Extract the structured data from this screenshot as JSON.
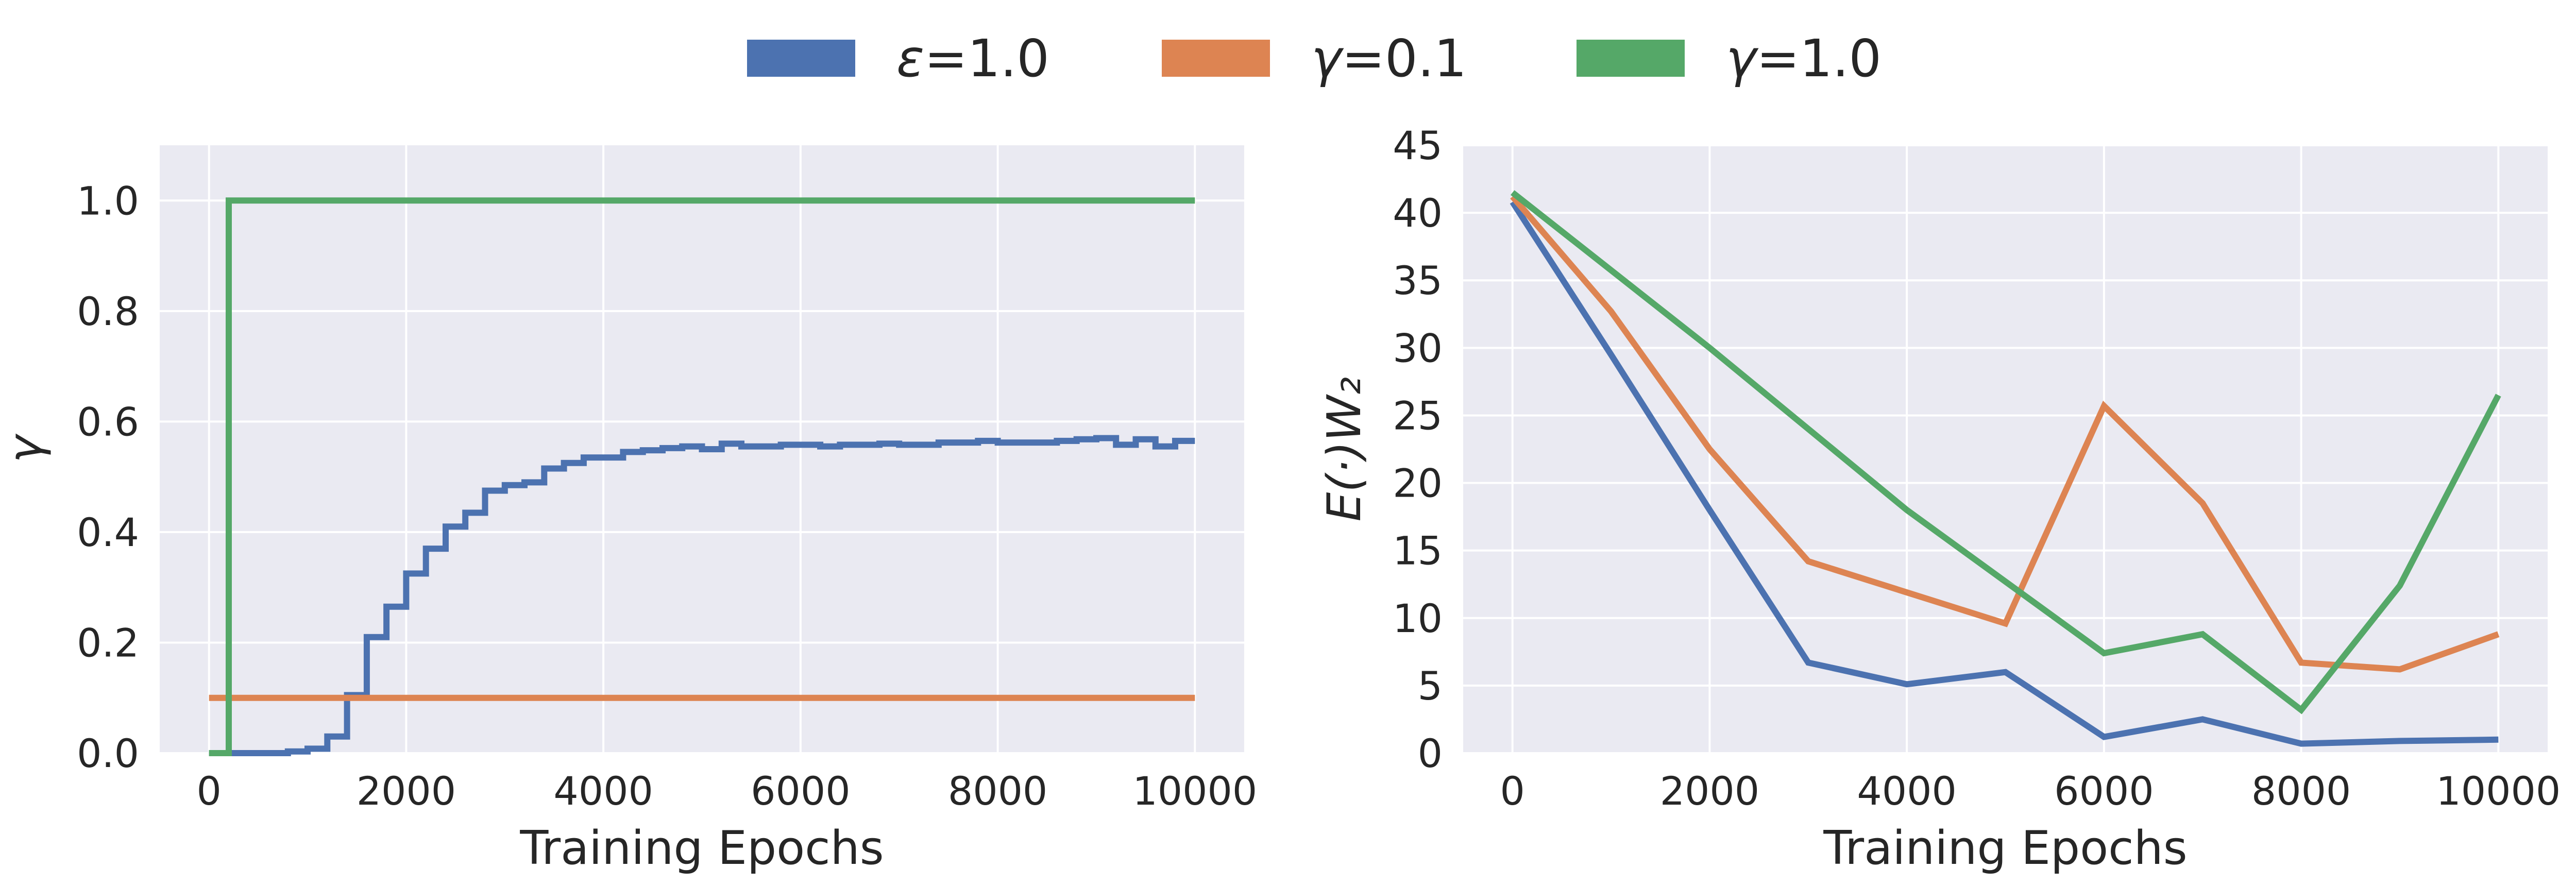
{
  "legend": {
    "items": [
      {
        "symbol": "ε",
        "value": "=1.0",
        "color": "#4c72b0"
      },
      {
        "symbol": "γ",
        "value": "=0.1",
        "color": "#dd8452"
      },
      {
        "symbol": "γ",
        "value": "=1.0",
        "color": "#55a868"
      }
    ]
  },
  "chart_data": [
    {
      "type": "line",
      "title": "",
      "xlabel": "Training Epochs",
      "ylabel": "γ",
      "xlim": [
        -500,
        10500
      ],
      "ylim": [
        0,
        1.1
      ],
      "xticks": [
        0,
        2000,
        4000,
        6000,
        8000,
        10000
      ],
      "xtick_labels": [
        "0",
        "2000",
        "4000",
        "6000",
        "8000",
        "10000"
      ],
      "yticks": [
        0,
        0.2,
        0.4,
        0.6,
        0.8,
        1.0
      ],
      "ytick_labels": [
        "0.0",
        "0.2",
        "0.4",
        "0.6",
        "0.8",
        "1.0"
      ],
      "grid": true,
      "drawstyle": "steps-post",
      "series": [
        {
          "name": "ε=1.0",
          "color": "#4c72b0",
          "x": [
            0,
            200,
            400,
            600,
            800,
            1000,
            1200,
            1400,
            1600,
            1800,
            2000,
            2200,
            2400,
            2600,
            2800,
            3000,
            3200,
            3400,
            3600,
            3800,
            4000,
            4200,
            4400,
            4600,
            4800,
            5000,
            5200,
            5400,
            5600,
            5800,
            6000,
            6200,
            6400,
            6600,
            6800,
            7000,
            7200,
            7400,
            7600,
            7800,
            8000,
            8200,
            8400,
            8600,
            8800,
            9000,
            9200,
            9400,
            9600,
            9800,
            10000
          ],
          "y": [
            0,
            0,
            0,
            0,
            0.003,
            0.008,
            0.03,
            0.105,
            0.21,
            0.265,
            0.325,
            0.37,
            0.41,
            0.435,
            0.475,
            0.485,
            0.49,
            0.515,
            0.525,
            0.535,
            0.535,
            0.545,
            0.548,
            0.552,
            0.555,
            0.55,
            0.56,
            0.555,
            0.555,
            0.558,
            0.558,
            0.555,
            0.558,
            0.558,
            0.56,
            0.558,
            0.558,
            0.562,
            0.562,
            0.565,
            0.562,
            0.562,
            0.562,
            0.565,
            0.568,
            0.57,
            0.558,
            0.568,
            0.555,
            0.565,
            0.565
          ]
        },
        {
          "name": "γ=0.1",
          "color": "#dd8452",
          "x": [
            0,
            10000
          ],
          "y": [
            0.1,
            0.1
          ]
        },
        {
          "name": "γ=1.0",
          "color": "#55a868",
          "x": [
            0,
            200,
            10000
          ],
          "y": [
            0,
            1.0,
            1.0
          ]
        }
      ]
    },
    {
      "type": "line",
      "title": "",
      "xlabel": "Training Epochs",
      "ylabel": "E(·)W₂",
      "xlim": [
        -500,
        10500
      ],
      "ylim": [
        0,
        45
      ],
      "xticks": [
        0,
        2000,
        4000,
        6000,
        8000,
        10000
      ],
      "xtick_labels": [
        "0",
        "2000",
        "4000",
        "6000",
        "8000",
        "10000"
      ],
      "yticks": [
        0,
        5,
        10,
        15,
        20,
        25,
        30,
        35,
        40,
        45
      ],
      "ytick_labels": [
        "0",
        "5",
        "10",
        "15",
        "20",
        "25",
        "30",
        "35",
        "40",
        "45"
      ],
      "grid": true,
      "drawstyle": "default",
      "series": [
        {
          "name": "ε=1.0",
          "color": "#4c72b0",
          "x": [
            0,
            1000,
            2000,
            3000,
            4000,
            5000,
            6000,
            7000,
            8000,
            9000,
            10000
          ],
          "y": [
            40.8,
            29.5,
            18.0,
            6.7,
            5.1,
            6.0,
            1.2,
            2.5,
            0.7,
            0.9,
            1.0
          ]
        },
        {
          "name": "γ=0.1",
          "color": "#dd8452",
          "x": [
            0,
            1000,
            2000,
            3000,
            4000,
            5000,
            6000,
            7000,
            8000,
            9000,
            10000
          ],
          "y": [
            41.2,
            32.7,
            22.5,
            14.2,
            11.9,
            9.6,
            25.7,
            18.5,
            6.7,
            6.2,
            8.8
          ]
        },
        {
          "name": "γ=1.0",
          "color": "#55a868",
          "x": [
            0,
            2000,
            4000,
            6000,
            7000,
            8000,
            9000,
            10000
          ],
          "y": [
            41.5,
            30.0,
            18.0,
            7.4,
            8.8,
            3.2,
            12.4,
            26.5
          ]
        }
      ]
    }
  ]
}
